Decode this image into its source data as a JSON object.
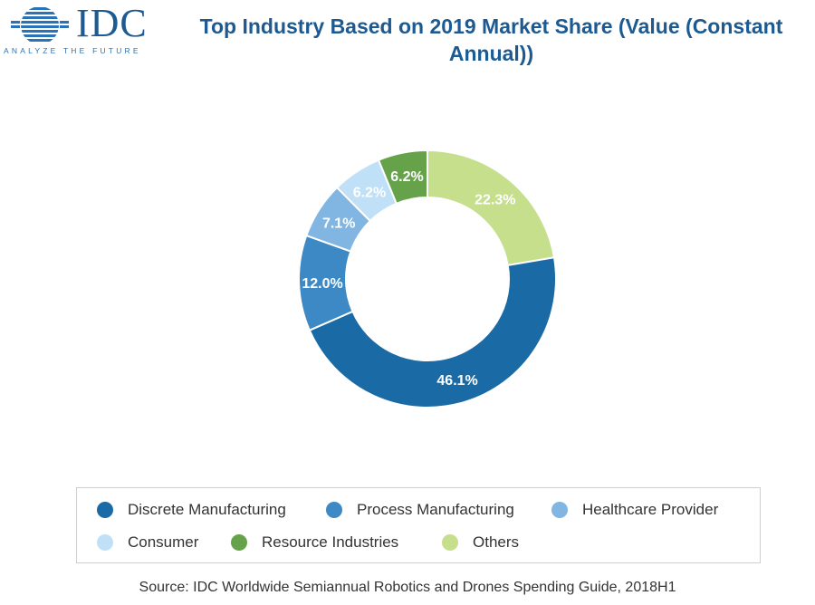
{
  "logo": {
    "word": "IDC",
    "tagline": "ANALYZE THE FUTURE"
  },
  "chart_data": {
    "type": "pie",
    "donut": true,
    "title": "Top Industry Based on 2019 Market Share (Value (Constant Annual))",
    "unit": "%",
    "slices": [
      {
        "name": "Others",
        "value": 22.3,
        "label": "22.3%",
        "color": "#c6df8c",
        "label_color": "#ffffff"
      },
      {
        "name": "Discrete Manufacturing",
        "value": 46.1,
        "label": "46.1%",
        "color": "#1a6aa6",
        "label_color": "#ffffff"
      },
      {
        "name": "Process Manufacturing",
        "value": 12.0,
        "label": "12.0%",
        "color": "#3d89c5",
        "label_color": "#ffffff"
      },
      {
        "name": "Healthcare Provider",
        "value": 7.1,
        "label": "7.1%",
        "color": "#82b6e2",
        "label_color": "#ffffff"
      },
      {
        "name": "Consumer",
        "value": 6.2,
        "label": "6.2%",
        "color": "#bfe0f7",
        "label_color": "#ffffff"
      },
      {
        "name": "Resource Industries",
        "value": 6.2,
        "label": "6.2%",
        "color": "#66a24a",
        "label_color": "#ffffff"
      }
    ],
    "legend": [
      {
        "name": "Discrete Manufacturing",
        "color": "#1a6aa6"
      },
      {
        "name": "Process Manufacturing",
        "color": "#3d89c5"
      },
      {
        "name": "Healthcare Provider",
        "color": "#82b6e2"
      },
      {
        "name": "Consumer",
        "color": "#bfe0f7"
      },
      {
        "name": "Resource Industries",
        "color": "#66a24a"
      },
      {
        "name": "Others",
        "color": "#c6df8c"
      }
    ],
    "legend_position": "bottom"
  },
  "source": "Source: IDC Worldwide Semiannual Robotics and Drones Spending Guide, 2018H1"
}
